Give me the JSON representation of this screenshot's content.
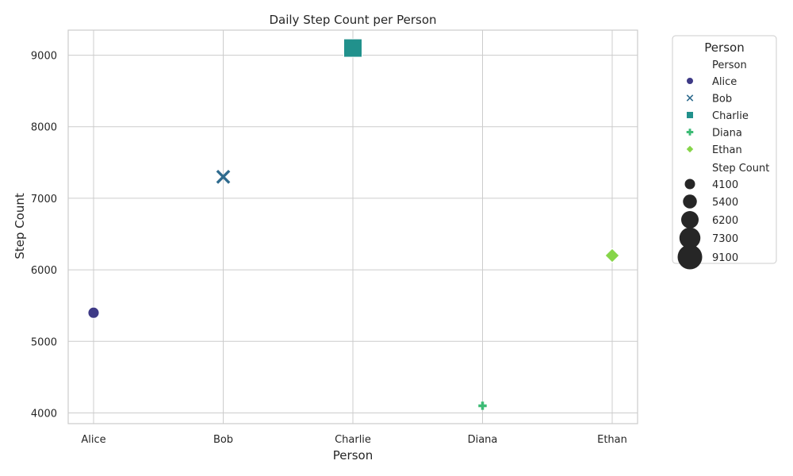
{
  "chart_data": {
    "type": "scatter",
    "title": "Daily Step Count per Person",
    "xlabel": "Person",
    "ylabel": "Step Count",
    "categories": [
      "Alice",
      "Bob",
      "Charlie",
      "Diana",
      "Ethan"
    ],
    "ylim": [
      3850,
      9350
    ],
    "yticks": [
      4000,
      5000,
      6000,
      7000,
      8000,
      9000
    ],
    "grid": true,
    "legend_placement": "outside-right",
    "points": [
      {
        "person": "Alice",
        "value": 5400,
        "marker": "circle",
        "color": "#3e3a86"
      },
      {
        "person": "Bob",
        "value": 7300,
        "marker": "x",
        "color": "#2f6b8e"
      },
      {
        "person": "Charlie",
        "value": 9100,
        "marker": "square",
        "color": "#21918c"
      },
      {
        "person": "Diana",
        "value": 4100,
        "marker": "plus",
        "color": "#3cbb75"
      },
      {
        "person": "Ethan",
        "value": 6200,
        "marker": "diamond",
        "color": "#86d549"
      }
    ],
    "legend": {
      "title": "Person",
      "hue_title": "Person",
      "hue_entries": [
        {
          "label": "Alice",
          "marker": "circle",
          "color": "#3e3a86"
        },
        {
          "label": "Bob",
          "marker": "x",
          "color": "#2f6b8e"
        },
        {
          "label": "Charlie",
          "marker": "square",
          "color": "#21918c"
        },
        {
          "label": "Diana",
          "marker": "plus",
          "color": "#3cbb75"
        },
        {
          "label": "Ethan",
          "marker": "diamond",
          "color": "#86d549"
        }
      ],
      "size_title": "Step Count",
      "size_entries": [
        {
          "label": "4100",
          "value": 4100
        },
        {
          "label": "5400",
          "value": 5400
        },
        {
          "label": "6200",
          "value": 6200
        },
        {
          "label": "7300",
          "value": 7300
        },
        {
          "label": "9100",
          "value": 9100
        }
      ]
    }
  }
}
